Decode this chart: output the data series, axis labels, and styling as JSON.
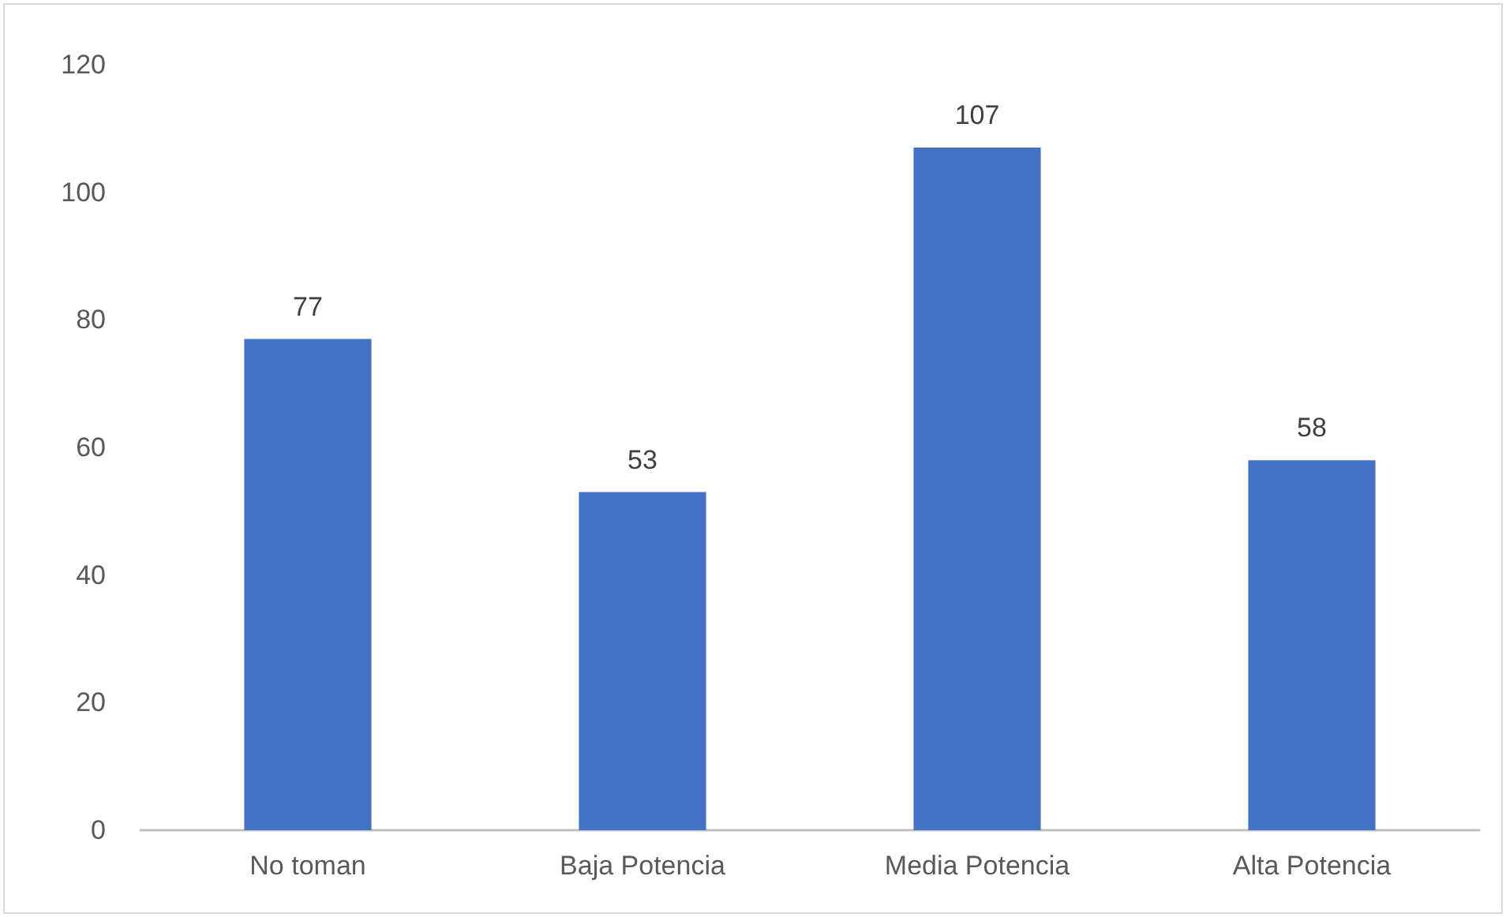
{
  "chart_data": {
    "type": "bar",
    "categories": [
      "No toman",
      "Baja Potencia",
      "Media Potencia",
      "Alta Potencia"
    ],
    "values": [
      77,
      53,
      107,
      58
    ],
    "color": "#4472c4",
    "ylim": [
      0,
      120
    ],
    "yticks": [
      0,
      20,
      40,
      60,
      80,
      100,
      120
    ],
    "grid": false,
    "data_labels": true
  }
}
